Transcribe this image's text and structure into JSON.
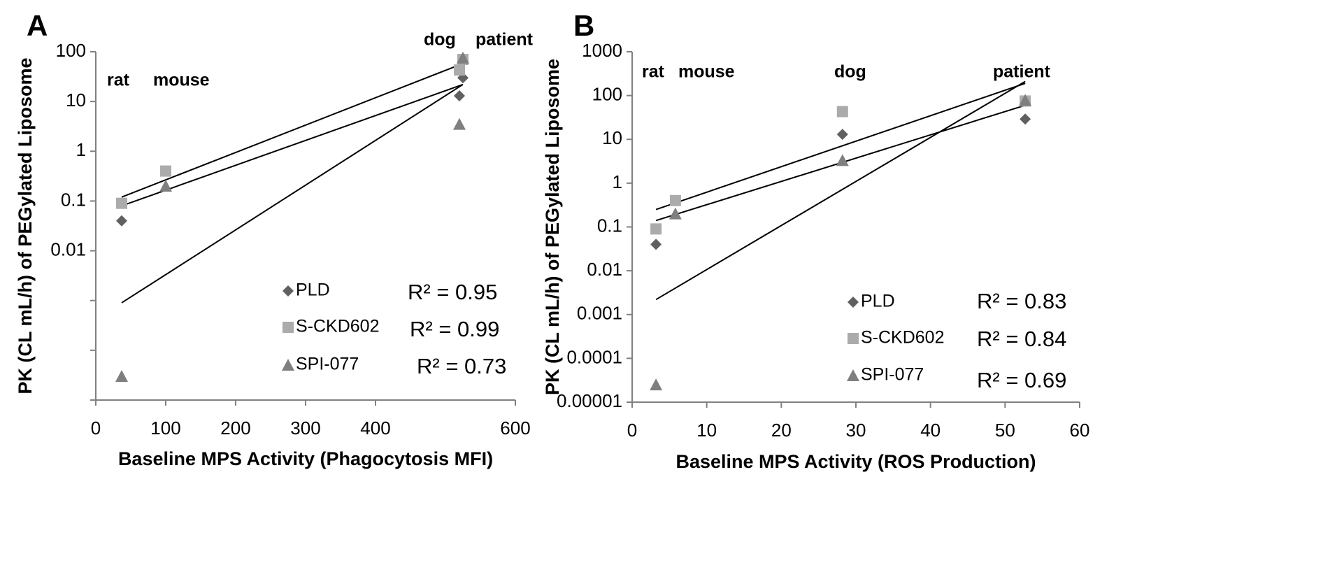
{
  "chart_data": [
    {
      "panel": "A",
      "type": "scatter",
      "xlabel": "Baseline MPS Activity (Phagocytosis MFI)",
      "ylabel": "PK (CL mL/h) of PEGylated Liposome",
      "xlim": [
        0,
        600
      ],
      "ylim": [
        1e-05,
        100
      ],
      "yscale": "log",
      "x_ticks": [
        0,
        100,
        200,
        300,
        400,
        600
      ],
      "x_tick_labels": [
        "0",
        "100",
        "200",
        "300",
        "400",
        "600"
      ],
      "y_ticks": [
        100,
        10,
        1,
        0.1,
        0.01
      ],
      "y_tick_labels": [
        "100",
        "10",
        "1",
        "0.1",
        "0.01"
      ],
      "y_minor_ticks": [
        0.001,
        0.0001,
        1e-05
      ],
      "species_labels": [
        {
          "text": "rat",
          "x": 35,
          "y": 50
        },
        {
          "text": "mouse",
          "x": 100,
          "y": 50
        },
        {
          "text": "dog",
          "x": 510,
          "y": 300
        },
        {
          "text": "patient",
          "x": 580,
          "y": 300
        }
      ],
      "series": [
        {
          "name": "PLD",
          "marker": "diamond",
          "color": "#606060",
          "x": [
            37,
            520,
            525
          ],
          "y": [
            0.04,
            13,
            30
          ]
        },
        {
          "name": "S-CKD602",
          "marker": "square",
          "color": "#ababab",
          "x": [
            37,
            100,
            520,
            525
          ],
          "y": [
            0.09,
            0.4,
            43,
            70
          ]
        },
        {
          "name": "SPI-077",
          "marker": "triangle",
          "color": "#7f7f7f",
          "x": [
            37,
            100,
            520,
            525
          ],
          "y": [
            3e-05,
            0.2,
            3.5,
            75
          ]
        }
      ],
      "trendlines": [
        {
          "x": [
            37,
            525
          ],
          "y": [
            0.12,
            58
          ]
        },
        {
          "x": [
            37,
            525
          ],
          "y": [
            0.08,
            22
          ]
        },
        {
          "x": [
            37,
            525
          ],
          "y": [
            0.0009,
            22
          ]
        }
      ],
      "r2_labels": [
        "R² = 0.95",
        "R² = 0.99",
        "R² = 0.73"
      ]
    },
    {
      "panel": "B",
      "type": "scatter",
      "xlabel": "Baseline MPS Activity (ROS Production)",
      "ylabel": "PK (CL mL/h) of PEGylated Liposome",
      "xlim": [
        0,
        60
      ],
      "ylim": [
        1e-05,
        1000
      ],
      "yscale": "log",
      "x_ticks": [
        0,
        10,
        20,
        30,
        40,
        50,
        60
      ],
      "x_tick_labels": [
        "0",
        "10",
        "20",
        "30",
        "40",
        "50",
        "60"
      ],
      "y_ticks": [
        1000,
        100,
        10,
        1,
        0.1,
        0.01,
        0.001,
        0.0001,
        1e-05
      ],
      "y_tick_labels": [
        "1000",
        "100",
        "10",
        "1",
        "0.1",
        "0.01",
        "0.001",
        "0.0001",
        "0.00001"
      ],
      "species_labels": [
        {
          "text": "rat",
          "x": 3.2,
          "y": 300
        },
        {
          "text": "mouse",
          "x": 9,
          "y": 300
        },
        {
          "text": "dog",
          "x": 28.2,
          "y": 300
        },
        {
          "text": "patient",
          "x": 51,
          "y": 300
        }
      ],
      "series": [
        {
          "name": "PLD",
          "marker": "diamond",
          "color": "#606060",
          "x": [
            3.2,
            28.2,
            52.7
          ],
          "y": [
            0.04,
            13,
            29
          ]
        },
        {
          "name": "S-CKD602",
          "marker": "square",
          "color": "#ababab",
          "x": [
            3.2,
            5.8,
            28.2,
            52.7
          ],
          "y": [
            0.09,
            0.4,
            43,
            75
          ]
        },
        {
          "name": "SPI-077",
          "marker": "triangle",
          "color": "#7f7f7f",
          "x": [
            3.2,
            5.8,
            28.2,
            52.7
          ],
          "y": [
            2.5e-05,
            0.2,
            3.3,
            78
          ]
        }
      ],
      "trendlines": [
        {
          "x": [
            3.2,
            52.7
          ],
          "y": [
            0.25,
            190
          ]
        },
        {
          "x": [
            3.2,
            52.7
          ],
          "y": [
            0.14,
            60
          ]
        },
        {
          "x": [
            3.2,
            52.7
          ],
          "y": [
            0.0022,
            210
          ]
        }
      ],
      "r2_labels": [
        "R² = 0.83",
        "R² = 0.84",
        "R² = 0.69"
      ]
    }
  ]
}
